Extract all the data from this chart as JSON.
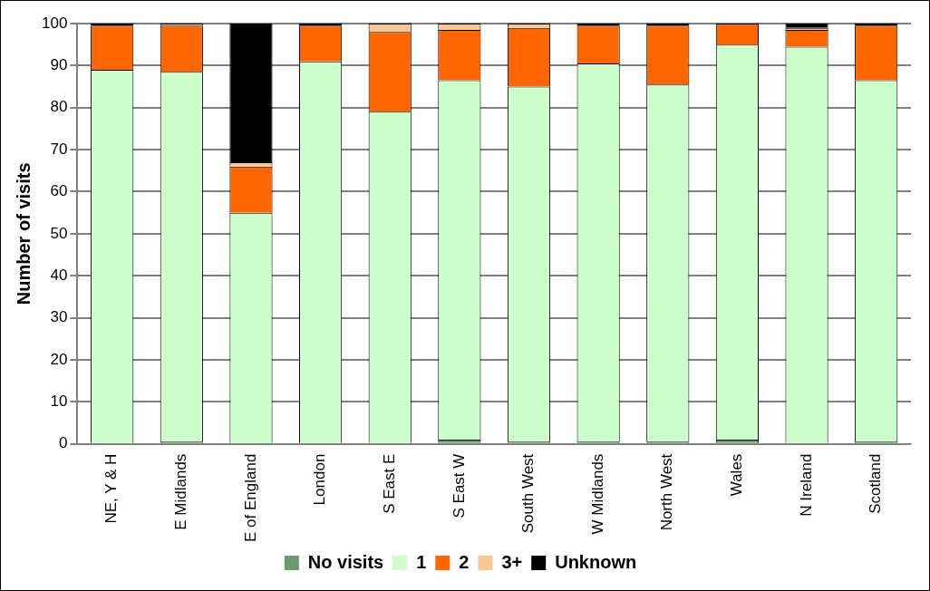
{
  "chart_data": {
    "type": "bar",
    "stacked": true,
    "ylabel": "Number of visits",
    "categories": [
      "NE, Y & H",
      "E Midlands",
      "E of England",
      "London",
      "S East E",
      "S East W",
      "South West",
      "W Midlands",
      "North West",
      "Wales",
      "N Ireland",
      "Scotland"
    ],
    "series": [
      {
        "name": "No visits",
        "color": "#6f9a6f",
        "values": [
          0,
          0.5,
          0,
          0,
          0,
          1,
          0.5,
          0.5,
          0.5,
          1,
          0,
          0.5
        ]
      },
      {
        "name": "1",
        "color": "#ccffcc",
        "values": [
          89,
          88,
          55,
          91,
          79,
          85.5,
          84.5,
          90,
          85,
          94,
          94.5,
          86
        ]
      },
      {
        "name": "2",
        "color": "#ff6600",
        "values": [
          10.5,
          11,
          11,
          8.5,
          19,
          12,
          14,
          9,
          14,
          5,
          4,
          13
        ]
      },
      {
        "name": "3+",
        "color": "#fbc98f",
        "values": [
          0,
          0.5,
          1,
          0,
          2,
          1.5,
          1,
          0,
          0,
          0,
          0.5,
          0
        ]
      },
      {
        "name": "Unknown",
        "color": "#000000",
        "values": [
          0.5,
          0,
          33,
          0.5,
          0,
          0,
          0,
          0.5,
          0.5,
          0,
          1,
          0.5
        ]
      }
    ],
    "ylim": [
      0,
      100
    ],
    "yticks": [
      0,
      10,
      20,
      30,
      40,
      50,
      60,
      70,
      80,
      90,
      100
    ],
    "grid": "y",
    "legend": "bottom"
  }
}
